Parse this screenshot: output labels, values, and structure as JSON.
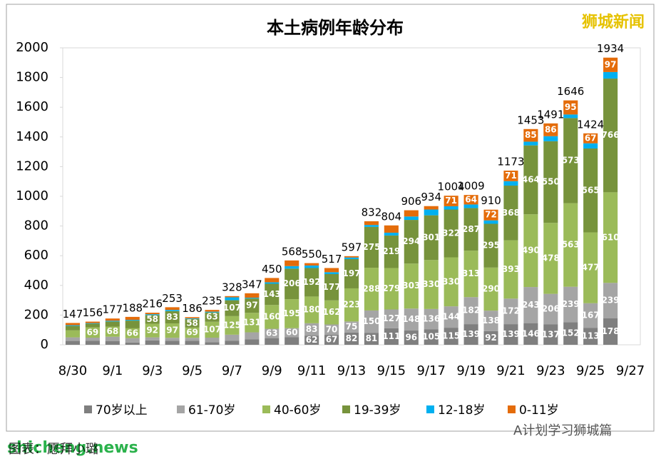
{
  "chart_data": {
    "type": "stacked-bar",
    "title": "本土病例年龄分布",
    "categories": [
      "8/30",
      null,
      "9/1",
      null,
      "9/3",
      null,
      "9/5",
      null,
      "9/7",
      null,
      "9/9",
      null,
      "9/11",
      null,
      "9/13",
      null,
      "9/15",
      null,
      "9/17",
      null,
      "9/19",
      null,
      "9/21",
      null,
      "9/23",
      null,
      "9/25",
      null,
      "9/27"
    ],
    "series": [
      {
        "name": "70岁以上",
        "color": "#7f7f7f",
        "values": [
          26,
          28,
          24,
          15,
          30,
          27,
          27,
          18,
          28,
          36,
          45,
          52,
          62,
          67,
          82,
          81,
          111,
          96,
          105,
          115,
          139,
          92,
          139,
          146,
          137,
          152,
          113,
          178,
          null
        ]
      },
      {
        "name": "61-70岁",
        "color": "#a5a5a5",
        "values": [
          24,
          20,
          30,
          30,
          20,
          20,
          20,
          30,
          40,
          48,
          63,
          60,
          83,
          70,
          75,
          150,
          127,
          148,
          136,
          144,
          182,
          138,
          172,
          243,
          206,
          239,
          167,
          239,
          null
        ]
      },
      {
        "name": "40-60岁",
        "color": "#9bbb59",
        "values": [
          47,
          69,
          68,
          66,
          92,
          97,
          69,
          107,
          125,
          131,
          160,
          195,
          180,
          162,
          223,
          288,
          279,
          303,
          330,
          330,
          313,
          290,
          393,
          490,
          478,
          563,
          477,
          610,
          null
        ]
      },
      {
        "name": "19-39岁",
        "color": "#77933c",
        "values": [
          30,
          25,
          35,
          52,
          58,
          83,
          58,
          63,
          107,
          97,
          143,
          206,
          192,
          177,
          197,
          275,
          219,
          294,
          301,
          322,
          287,
          295,
          368,
          464,
          550,
          573,
          565,
          766,
          null
        ]
      },
      {
        "name": "12-18岁",
        "color": "#00b0f0",
        "values": [
          5,
          4,
          5,
          5,
          6,
          8,
          4,
          5,
          20,
          5,
          10,
          17,
          17,
          13,
          11,
          13,
          19,
          23,
          39,
          22,
          24,
          23,
          30,
          25,
          34,
          24,
          35,
          44,
          null
        ]
      },
      {
        "name": "0-11岁",
        "color": "#e46c0a",
        "values": [
          15,
          10,
          15,
          20,
          10,
          18,
          8,
          12,
          8,
          30,
          29,
          38,
          16,
          28,
          9,
          25,
          49,
          42,
          23,
          71,
          64,
          72,
          71,
          85,
          86,
          95,
          67,
          97,
          null
        ]
      }
    ],
    "totals": [
      147,
      156,
      177,
      188,
      216,
      253,
      186,
      235,
      328,
      347,
      450,
      568,
      550,
      517,
      597,
      832,
      804,
      906,
      934,
      1004,
      1009,
      910,
      1173,
      1453,
      1491,
      1646,
      1424,
      1934,
      null
    ],
    "ylim": [
      0,
      2000
    ],
    "yticks": [
      0,
      200,
      400,
      600,
      800,
      1000,
      1200,
      1400,
      1600,
      1800,
      2000
    ],
    "grid": false,
    "legend": "bottom"
  },
  "annotations": {
    "watermark": "狮城新闻",
    "site": "shicheng.news",
    "caption": "图表：愿拜小璐",
    "account": "A计划学习狮城篇"
  }
}
